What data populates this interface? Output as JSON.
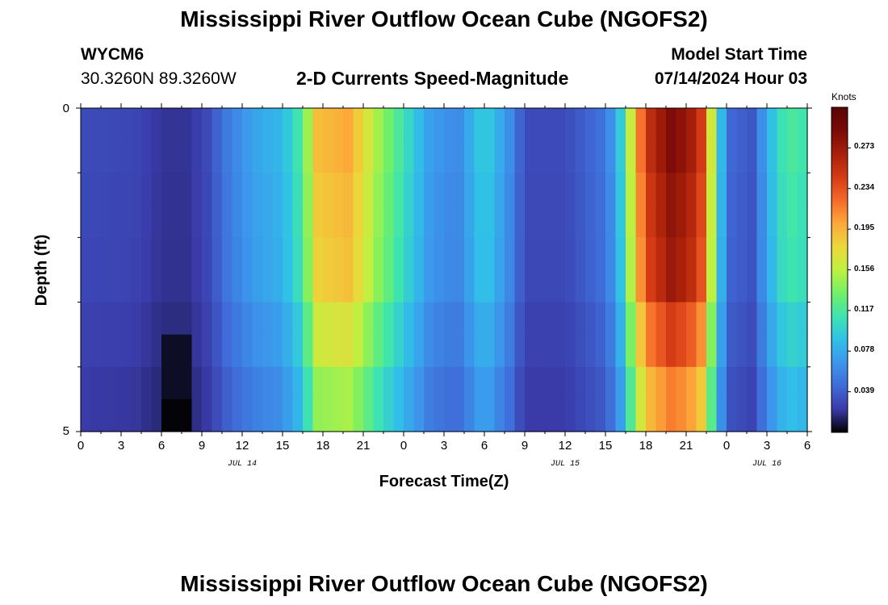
{
  "header": {
    "title_top": "Mississippi River Outflow Ocean Cube (NGOFS2)",
    "title_bottom": "Mississippi River Outflow Ocean Cube (NGOFS2)",
    "station_id": "WYCM6",
    "station_coords": "30.3260N  89.3260W",
    "plot_subtitle": "2-D Currents Speed-Magnitude",
    "model_start_label": "Model Start Time",
    "model_start_value": "07/14/2024 Hour 03"
  },
  "chart_data": {
    "type": "heatmap",
    "title": "2-D Currents Speed-Magnitude",
    "xlabel": "Forecast Time(Z)",
    "ylabel": "Depth (ft)",
    "x_range_hours": [
      0,
      54
    ],
    "y_range": [
      0,
      5
    ],
    "y_tick_labels": [
      "0",
      "5"
    ],
    "x_tick_labels": [
      "0",
      "3",
      "6",
      "9",
      "12",
      "15",
      "18",
      "21",
      "0",
      "3",
      "6",
      "9",
      "12",
      "15",
      "18",
      "21",
      "0",
      "3",
      "6"
    ],
    "date_labels": [
      {
        "label": "JUL 14",
        "hour": 12
      },
      {
        "label": "JUL 15",
        "hour": 36
      },
      {
        "label": "JUL 16",
        "hour": 51
      }
    ],
    "depth_levels": [
      0,
      0.5,
      1,
      1.5,
      2,
      2.5,
      3,
      3.5,
      4,
      4.5,
      5
    ],
    "speed_profile_knots": [
      {
        "hour": 0,
        "speed": 0.03
      },
      {
        "hour": 4,
        "speed": 0.028
      },
      {
        "hour": 6,
        "speed": 0.02
      },
      {
        "hour": 8,
        "speed": 0.02
      },
      {
        "hour": 9.5,
        "speed": 0.03
      },
      {
        "hour": 11,
        "speed": 0.055
      },
      {
        "hour": 13,
        "speed": 0.075
      },
      {
        "hour": 15,
        "speed": 0.085
      },
      {
        "hour": 16.5,
        "speed": 0.12
      },
      {
        "hour": 17.5,
        "speed": 0.19
      },
      {
        "hour": 20,
        "speed": 0.2
      },
      {
        "hour": 22,
        "speed": 0.15
      },
      {
        "hour": 24,
        "speed": 0.11
      },
      {
        "hour": 26,
        "speed": 0.07
      },
      {
        "hour": 28,
        "speed": 0.06
      },
      {
        "hour": 30,
        "speed": 0.1
      },
      {
        "hour": 32,
        "speed": 0.06
      },
      {
        "hour": 33,
        "speed": 0.03
      },
      {
        "hour": 36,
        "speed": 0.03
      },
      {
        "hour": 39,
        "speed": 0.05
      },
      {
        "hour": 40,
        "speed": 0.085
      },
      {
        "hour": 41,
        "speed": 0.17
      },
      {
        "hour": 42,
        "speed": 0.25
      },
      {
        "hour": 44,
        "speed": 0.29
      },
      {
        "hour": 46,
        "speed": 0.26
      },
      {
        "hour": 47,
        "speed": 0.15
      },
      {
        "hour": 48,
        "speed": 0.045
      },
      {
        "hour": 50,
        "speed": 0.035
      },
      {
        "hour": 51,
        "speed": 0.08
      },
      {
        "hour": 52.5,
        "speed": 0.12
      },
      {
        "hour": 54,
        "speed": 0.11
      }
    ],
    "depth_modifiers": [
      1.0,
      0.97,
      0.95,
      0.85,
      0.75,
      0.65
    ],
    "anomaly": {
      "hour_start": 6.3,
      "hour_end": 8.0,
      "depth_start": 3.5,
      "depth_end": 5.0,
      "speed": 0.005
    },
    "colorbar": {
      "label": "Knots",
      "min": 0.0,
      "max": 0.312,
      "ticks": [
        "0.039",
        "0.078",
        "0.117",
        "0.156",
        "0.195",
        "0.234",
        "0.273"
      ],
      "colors": [
        "#000000",
        "#3a3aa8",
        "#3f6bd8",
        "#3c96ec",
        "#30c0e8",
        "#3ee4b0",
        "#72f066",
        "#c0f040",
        "#ecd83a",
        "#fca83a",
        "#f56a2a",
        "#d43a14",
        "#a8200a",
        "#7a0a08",
        "#5a0506"
      ]
    }
  }
}
